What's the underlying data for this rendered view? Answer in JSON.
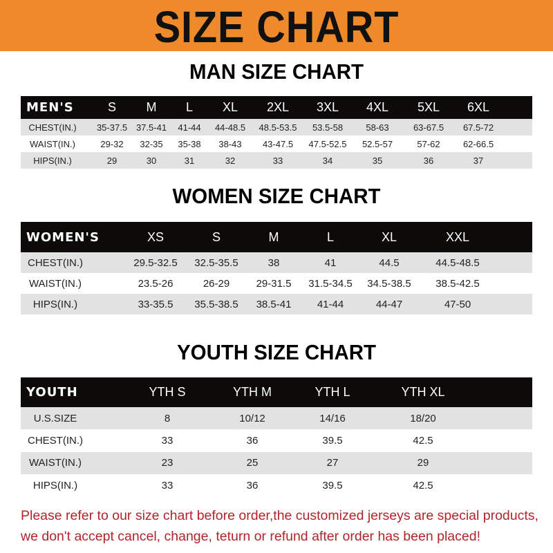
{
  "banner": {
    "title": "SIZE CHART",
    "color": "#ef8a2a"
  },
  "men": {
    "title": "MAN SIZE CHART",
    "header": [
      "MEN'S",
      "S",
      "M",
      "L",
      "XL",
      "2XL",
      "3XL",
      "4XL",
      "5XL",
      "6XL"
    ],
    "rows": [
      [
        "CHEST(IN.)",
        "35-37.5",
        "37.5-41",
        "41-44",
        "44-48.5",
        "48.5-53.5",
        "53.5-58",
        "58-63",
        "63-67.5",
        "67.5-72"
      ],
      [
        "WAIST(IN.)",
        "29-32",
        "32-35",
        "35-38",
        "38-43",
        "43-47.5",
        "47.5-52.5",
        "52.5-57",
        "57-62",
        "62-66.5"
      ],
      [
        "HIPS(IN.)",
        "29",
        "30",
        "31",
        "32",
        "33",
        "34",
        "35",
        "36",
        "37"
      ]
    ]
  },
  "women": {
    "title": "WOMEN SIZE CHART",
    "header": [
      "WOMEN'S",
      "XS",
      "S",
      "M",
      "L",
      "XL",
      "XXL"
    ],
    "rows": [
      [
        "CHEST(IN.)",
        "29.5-32.5",
        "32.5-35.5",
        "38",
        "41",
        "44.5",
        "44.5-48.5"
      ],
      [
        "WAIST(IN.)",
        "23.5-26",
        "26-29",
        "29-31.5",
        "31.5-34.5",
        "34.5-38.5",
        "38.5-42.5"
      ],
      [
        "HIPS(IN.)",
        "33-35.5",
        "35.5-38.5",
        "38.5-41",
        "41-44",
        "44-47",
        "47-50"
      ]
    ]
  },
  "youth": {
    "title": "YOUTH SIZE CHART",
    "header": [
      "YOUTH",
      "YTH S",
      "YTH M",
      "YTH L",
      "YTH XL"
    ],
    "rows": [
      [
        "U.S.SIZE",
        "8",
        "10/12",
        "14/16",
        "18/20"
      ],
      [
        "CHEST(IN.)",
        "33",
        "36",
        "39.5",
        "42.5"
      ],
      [
        "WAIST(IN.)",
        "23",
        "25",
        "27",
        "29"
      ],
      [
        "HIPS(IN.)",
        "33",
        "36",
        "39.5",
        "42.5"
      ]
    ]
  },
  "notice": {
    "line1": "Please refer to our size chart before order,the customized jerseys are special products,",
    "line2": "we don't accept cancel, change, teturn or refund after order has been placed!",
    "color": "#b3232a"
  }
}
